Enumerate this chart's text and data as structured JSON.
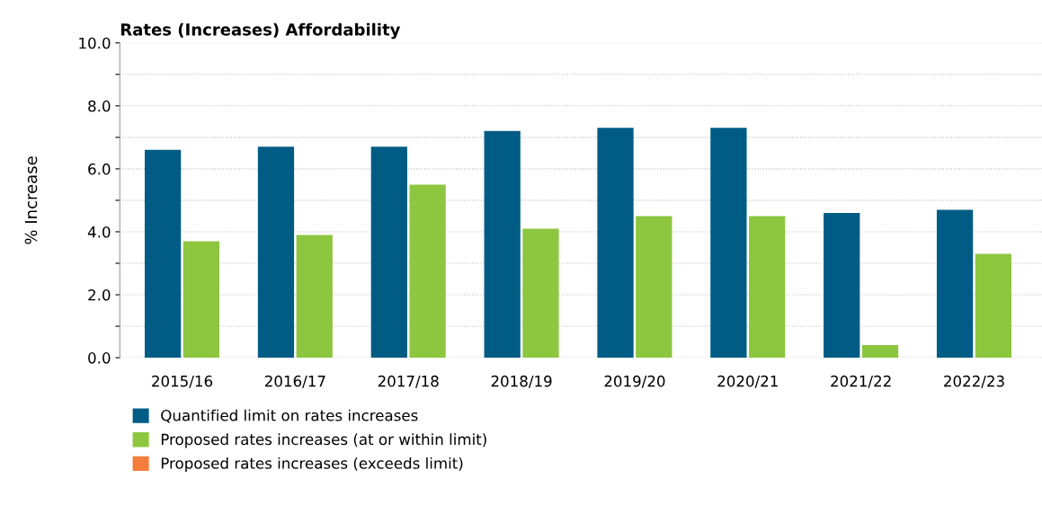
{
  "chart_data": {
    "type": "bar",
    "title": "Rates (Increases) Affordability",
    "ylabel": "% Increase",
    "categories": [
      "2015/16",
      "2016/17",
      "2017/18",
      "2018/19",
      "2019/20",
      "2020/21",
      "2021/22",
      "2022/23"
    ],
    "series": [
      {
        "name": "Quantified limit on rates increases",
        "color": "#005c84",
        "values": [
          6.6,
          6.7,
          6.7,
          7.2,
          7.3,
          7.3,
          4.6,
          4.7
        ]
      },
      {
        "name": "Proposed rates increases (at or within limit)",
        "color": "#8dc63f",
        "values": [
          3.7,
          3.9,
          5.5,
          4.1,
          4.5,
          4.5,
          0.4,
          3.3
        ]
      },
      {
        "name": "Proposed rates increases (exceeds limit)",
        "color": "#f47c3c",
        "values": [
          null,
          null,
          null,
          null,
          null,
          null,
          null,
          null
        ]
      }
    ],
    "ylim": [
      0,
      10
    ],
    "yticks": [
      {
        "value": 0,
        "label": "0.0"
      },
      {
        "value": 1,
        "label": null
      },
      {
        "value": 2,
        "label": "2.0"
      },
      {
        "value": 3,
        "label": null
      },
      {
        "value": 4,
        "label": "4.0"
      },
      {
        "value": 5,
        "label": null
      },
      {
        "value": 6,
        "label": "6.0"
      },
      {
        "value": 7,
        "label": null
      },
      {
        "value": 8,
        "label": "8.0"
      },
      {
        "value": 9,
        "label": null
      },
      {
        "value": 10,
        "label": "10.0"
      }
    ],
    "grid": "y",
    "legend": "bottom left"
  }
}
